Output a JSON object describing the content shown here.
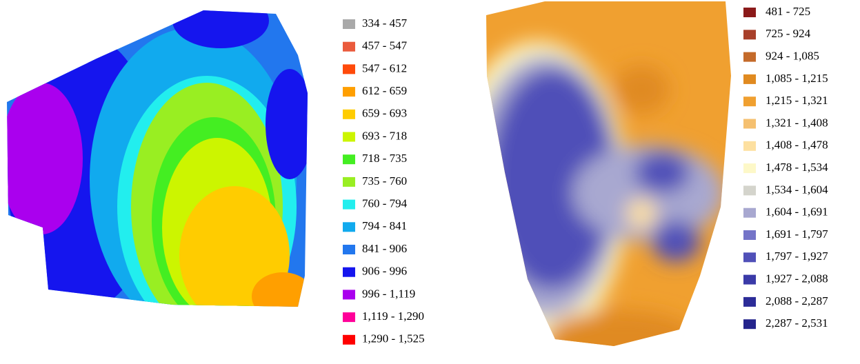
{
  "maps": [
    {
      "legend": [
        {
          "label": "334 - 457",
          "color": "#a9a9a9"
        },
        {
          "label": "457 - 547",
          "color": "#ea5a3c"
        },
        {
          "label": "547 - 612",
          "color": "#ff4a0a"
        },
        {
          "label": "612 - 659",
          "color": "#ff9f00"
        },
        {
          "label": "659 - 693",
          "color": "#ffcc00"
        },
        {
          "label": "693 - 718",
          "color": "#ccf500"
        },
        {
          "label": "718 - 735",
          "color": "#44ee22"
        },
        {
          "label": "735 - 760",
          "color": "#99ee22"
        },
        {
          "label": "760 - 794",
          "color": "#22eeee"
        },
        {
          "label": "794 - 841",
          "color": "#11aaee"
        },
        {
          "label": "841 - 906",
          "color": "#2277ee"
        },
        {
          "label": "906 - 996",
          "color": "#1515ee"
        },
        {
          "label": "996 - 1,119",
          "color": "#aa00ee"
        },
        {
          "label": "1,119 - 1,290",
          "color": "#ff0099"
        },
        {
          "label": "1,290 - 1,525",
          "color": "#ff0000"
        }
      ]
    },
    {
      "legend": [
        {
          "label": "481 - 725",
          "color": "#8b1a1a"
        },
        {
          "label": "725 - 924",
          "color": "#a8402a"
        },
        {
          "label": "924 - 1,085",
          "color": "#c46a2a"
        },
        {
          "label": "1,085 - 1,215",
          "color": "#e08a20"
        },
        {
          "label": "1,215 - 1,321",
          "color": "#f0a030"
        },
        {
          "label": "1,321 - 1,408",
          "color": "#f5c070"
        },
        {
          "label": "1,408 - 1,478",
          "color": "#fde0a0"
        },
        {
          "label": "1,478 - 1,534",
          "color": "#fdf8c8"
        },
        {
          "label": "1,534 - 1,604",
          "color": "#d4d4cc"
        },
        {
          "label": "1,604 - 1,691",
          "color": "#a8a8d0"
        },
        {
          "label": "1,691 - 1,797",
          "color": "#7474c8"
        },
        {
          "label": "1,797 - 1,927",
          "color": "#5050b8"
        },
        {
          "label": "1,927 - 2,088",
          "color": "#3a3aa8"
        },
        {
          "label": "2,088 - 2,287",
          "color": "#2c2c98"
        },
        {
          "label": "2,287 - 2,531",
          "color": "#24248c"
        }
      ]
    }
  ]
}
